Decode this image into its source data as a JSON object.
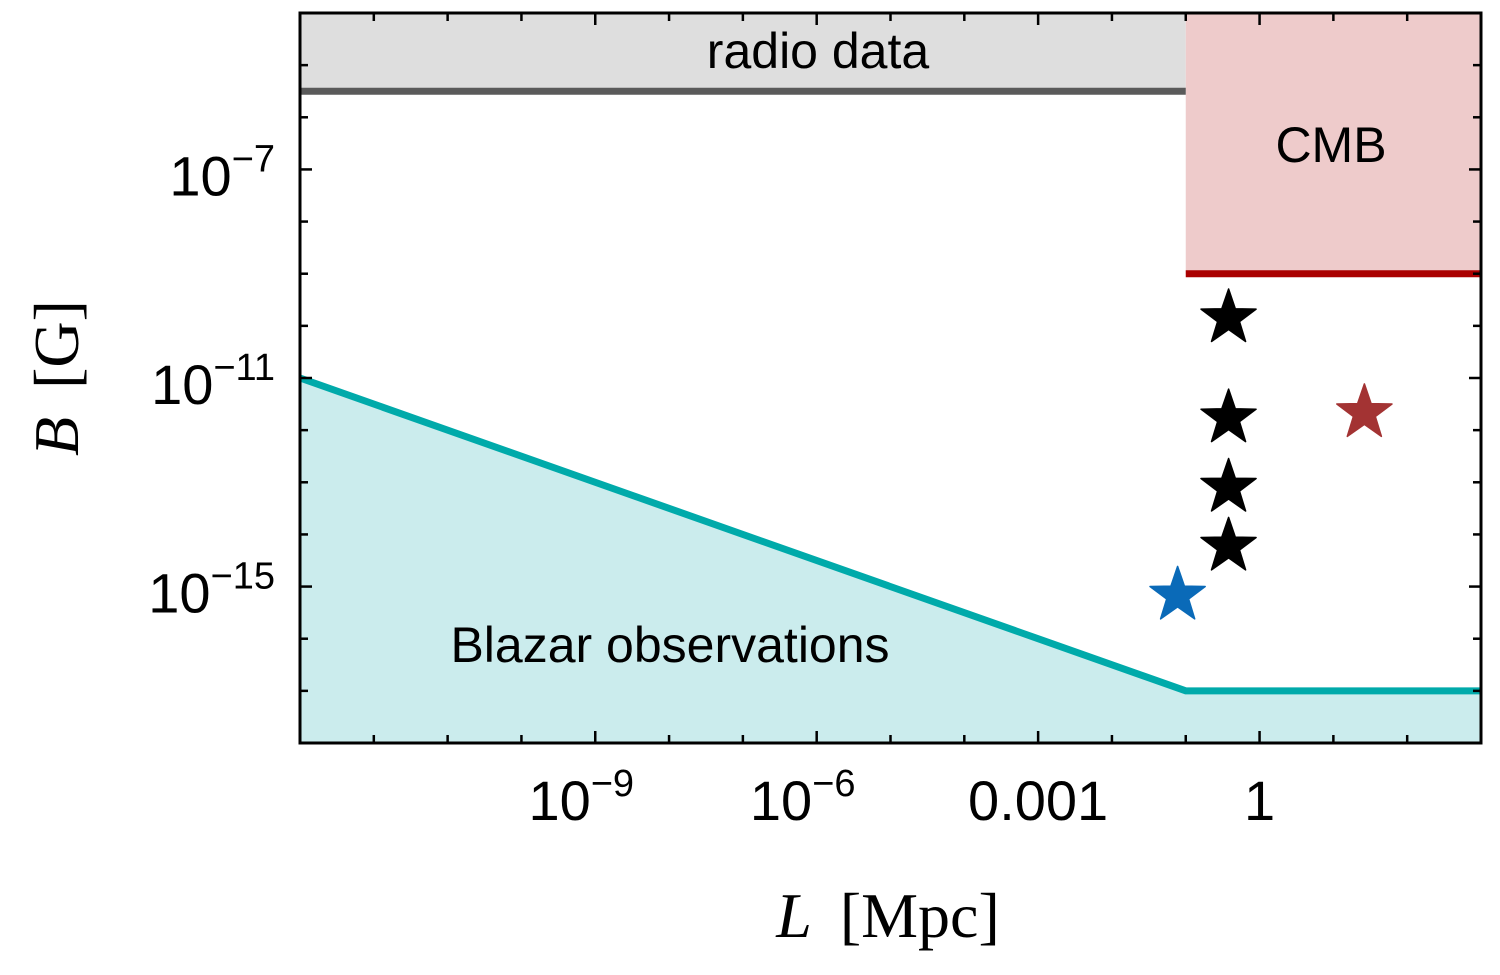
{
  "chart_data": {
    "type": "scatter",
    "title": "",
    "xlabel": {
      "symbol": "L",
      "unit": "[Mpc]"
    },
    "ylabel": {
      "symbol": "B",
      "unit": "[G]"
    },
    "x_scale": "log",
    "y_scale": "log",
    "xlim_log10": [
      -13,
      3
    ],
    "ylim_log10": [
      -18,
      -4
    ],
    "grid": false,
    "x_ticks_log10": [
      -12,
      -11,
      -10,
      -9,
      -8,
      -7,
      -6,
      -5,
      -4,
      -3,
      -2,
      -1,
      0,
      1,
      2
    ],
    "x_tick_labels": [
      {
        "log10": -9,
        "base": "10",
        "exp": "−9"
      },
      {
        "log10": -6,
        "base": "10",
        "exp": "−6"
      },
      {
        "log10": -3,
        "base": "0.001",
        "exp": ""
      },
      {
        "log10": 0,
        "base": "1",
        "exp": ""
      }
    ],
    "y_ticks_log10": [
      -17,
      -16,
      -15,
      -14,
      -13,
      -12,
      -11,
      -10,
      -9,
      -8,
      -7,
      -6,
      -5
    ],
    "y_tick_labels": [
      {
        "log10": -7,
        "base": "10",
        "exp": "−7"
      },
      {
        "log10": -11,
        "base": "10",
        "exp": "−11"
      },
      {
        "log10": -15,
        "base": "10",
        "exp": "−15"
      }
    ],
    "regions": [
      {
        "name": "radio data",
        "label": "radio data",
        "fill": "#dedede",
        "line_color": "#5a5a5a",
        "boundary_log10": [
          [
            -13,
            -5.5
          ],
          [
            -1,
            -5.5
          ]
        ],
        "extends": "up"
      },
      {
        "name": "CMB",
        "label": "CMB",
        "fill": "#eecbcb",
        "line_color": "#aa0000",
        "boundary_log10": [
          [
            -1,
            -9
          ],
          [
            3,
            -9
          ]
        ],
        "extends": "up"
      },
      {
        "name": "Blazar observations",
        "label": "Blazar observations",
        "fill": "#cbeced",
        "line_color": "#00aaaa",
        "boundary_log10": [
          [
            -13,
            -11
          ],
          [
            -1,
            -17
          ],
          [
            3,
            -17
          ]
        ],
        "extends": "down"
      }
    ],
    "series": [
      {
        "name": "black stars",
        "color": "#000000",
        "marker": "star",
        "points_log10": [
          [
            -0.42,
            -9.85
          ],
          [
            -0.42,
            -11.77
          ],
          [
            -0.42,
            -13.1
          ],
          [
            -0.42,
            -14.23
          ]
        ]
      },
      {
        "name": "red star",
        "color": "#a33333",
        "marker": "star",
        "points_log10": [
          [
            1.42,
            -11.67
          ]
        ]
      },
      {
        "name": "blue star",
        "color": "#0a6ab8",
        "marker": "star",
        "points_log10": [
          [
            -1.11,
            -15.17
          ]
        ]
      }
    ]
  }
}
